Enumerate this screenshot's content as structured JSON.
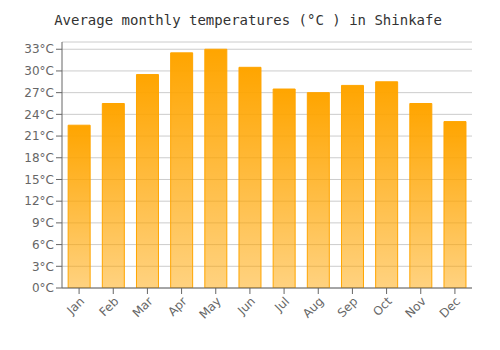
{
  "chart_data": {
    "type": "bar",
    "title": "Average monthly temperatures (°C ) in Shinkafe",
    "categories": [
      "Jan",
      "Feb",
      "Mar",
      "Apr",
      "May",
      "Jun",
      "Jul",
      "Aug",
      "Sep",
      "Oct",
      "Nov",
      "Dec"
    ],
    "values": [
      22.5,
      25.5,
      29.5,
      32.5,
      33.0,
      30.5,
      27.5,
      27.0,
      28.0,
      28.5,
      25.5,
      23.0
    ],
    "color": "#FFA500",
    "ylim": [
      0,
      34
    ],
    "yticks": [
      {
        "value": 0,
        "label": "0°C"
      },
      {
        "value": 3,
        "label": "3°C"
      },
      {
        "value": 6,
        "label": "6°C"
      },
      {
        "value": 9,
        "label": "9°C"
      },
      {
        "value": 12,
        "label": "12°C"
      },
      {
        "value": 15,
        "label": "15°C"
      },
      {
        "value": 18,
        "label": "18°C"
      },
      {
        "value": 21,
        "label": "21°C"
      },
      {
        "value": 24,
        "label": "24°C"
      },
      {
        "value": 27,
        "label": "27°C"
      },
      {
        "value": 30,
        "label": "30°C"
      },
      {
        "value": 33,
        "label": "33°C"
      }
    ],
    "grid": true
  }
}
